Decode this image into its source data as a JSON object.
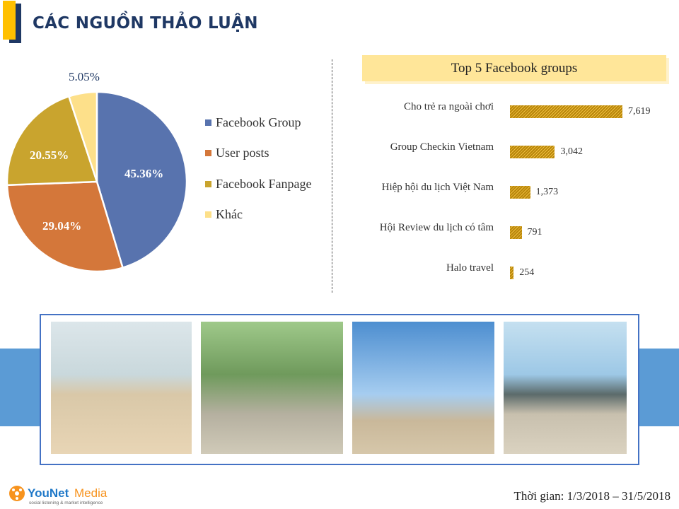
{
  "header": {
    "title": "CÁC NGUỒN THẢO LUẬN"
  },
  "chart_data": [
    {
      "type": "pie",
      "slices": [
        {
          "name": "Facebook Group",
          "value": 45.36,
          "label": "45.36%",
          "color": "#5873ae"
        },
        {
          "name": "User posts",
          "value": 29.04,
          "label": "29.04%",
          "color": "#d4773a"
        },
        {
          "name": "Facebook Fanpage",
          "value": 20.55,
          "label": "20.55%",
          "color": "#c9a42e"
        },
        {
          "name": "Khác",
          "value": 5.05,
          "label": "5.05%",
          "color": "#fde08a"
        }
      ],
      "legend": "right"
    },
    {
      "type": "bar",
      "orientation": "horizontal",
      "title": "Top 5 Facebook groups",
      "categories": [
        "Cho trẻ ra ngoài chơi",
        "Group Checkin Vietnam",
        "Hiệp hội du lịch Việt Nam",
        "Hội Review du lịch có tâm",
        "Halo travel"
      ],
      "values": [
        7619,
        3042,
        1373,
        791,
        254
      ],
      "labels": [
        "7,619",
        "3,042",
        "1,373",
        "791",
        "254"
      ],
      "color": "#c9a42e"
    }
  ],
  "footer": {
    "logo": "YouNet Media",
    "logo_tagline": "social listening & market intelligence",
    "date": "Thời gian: 1/3/2018 – 31/5/2018"
  }
}
